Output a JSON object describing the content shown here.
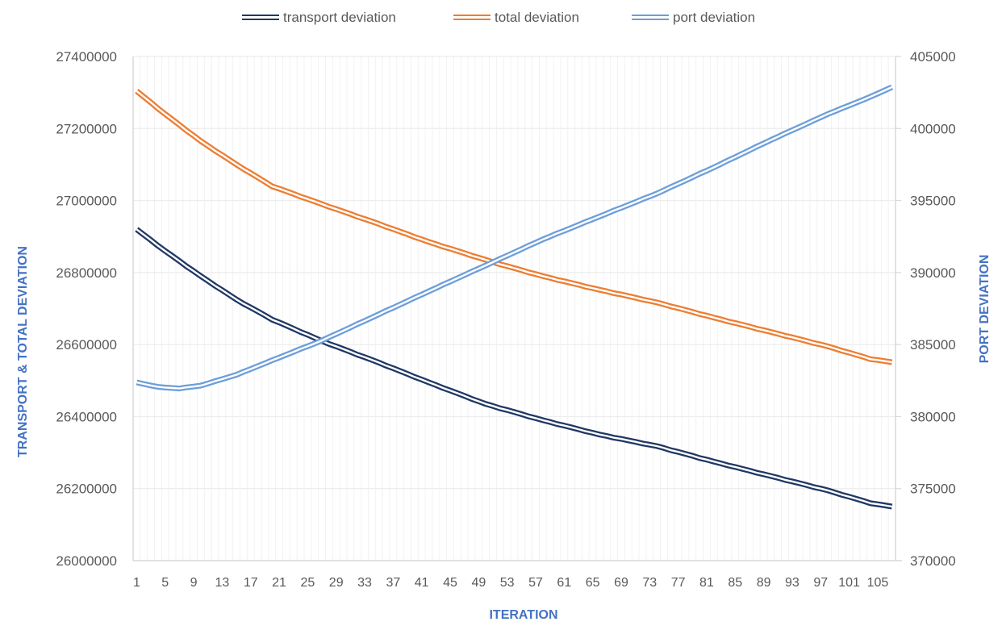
{
  "chart_data": {
    "type": "line",
    "title": "",
    "xlabel": "ITERATION",
    "ylabel": "TRANSPORT & TOTAL DEVIATION",
    "y2label": "PORT DEVIATION",
    "ylim": [
      26000000,
      27400000
    ],
    "y2lim": [
      370000,
      405000
    ],
    "yticks": [
      "26000000",
      "26200000",
      "26400000",
      "26600000",
      "26800000",
      "27000000",
      "27200000",
      "27400000"
    ],
    "y2ticks": [
      "370000",
      "375000",
      "380000",
      "385000",
      "390000",
      "395000",
      "400000",
      "405000"
    ],
    "xtick_labels": [
      "1",
      "5",
      "9",
      "13",
      "17",
      "21",
      "25",
      "29",
      "33",
      "37",
      "41",
      "45",
      "49",
      "53",
      "57",
      "61",
      "65",
      "69",
      "73",
      "77",
      "81",
      "85",
      "89",
      "93",
      "97",
      "101",
      "105"
    ],
    "n_points": 107,
    "grid": true,
    "legend_position": "top",
    "series": [
      {
        "name": "transport deviation",
        "axis": "left",
        "color": "#203864",
        "keypoints": {
          "x": [
            1,
            5,
            10,
            15,
            20,
            27,
            35,
            42,
            50,
            58,
            66,
            74,
            82,
            90,
            98,
            104,
            107
          ],
          "y": [
            26920000,
            26860000,
            26790000,
            26725000,
            26670000,
            26610000,
            26550000,
            26495000,
            26435000,
            26390000,
            26350000,
            26318000,
            26275000,
            26235000,
            26195000,
            26160000,
            26150000
          ]
        }
      },
      {
        "name": "total deviation",
        "axis": "left",
        "color": "#ed7d31",
        "keypoints": {
          "x": [
            1,
            5,
            10,
            15,
            20,
            27,
            35,
            42,
            51,
            58,
            66,
            74,
            82,
            90,
            98,
            104,
            107
          ],
          "y": [
            27304000,
            27240000,
            27165000,
            27100000,
            27040000,
            26990000,
            26935000,
            26885000,
            26829000,
            26790000,
            26752000,
            26717000,
            26675000,
            26635000,
            26595000,
            26560000,
            26551000
          ]
        }
      },
      {
        "name": "port deviation",
        "axis": "right",
        "color": "#6d9eda",
        "keypoints": {
          "x": [
            1,
            4,
            7,
            10,
            15,
            20,
            27,
            35,
            42,
            51,
            58,
            66,
            74,
            82,
            90,
            98,
            104,
            107
          ],
          "y": [
            382370,
            382050,
            381950,
            382150,
            382900,
            383900,
            385280,
            387100,
            388700,
            390720,
            392300,
            393900,
            395480,
            397300,
            399200,
            401000,
            402200,
            402870
          ]
        }
      }
    ]
  },
  "legend": [
    {
      "label": "transport deviation",
      "color": "#203864"
    },
    {
      "label": "total deviation",
      "color": "#ed7d31"
    },
    {
      "label": "port deviation",
      "color": "#6d9eda"
    }
  ]
}
